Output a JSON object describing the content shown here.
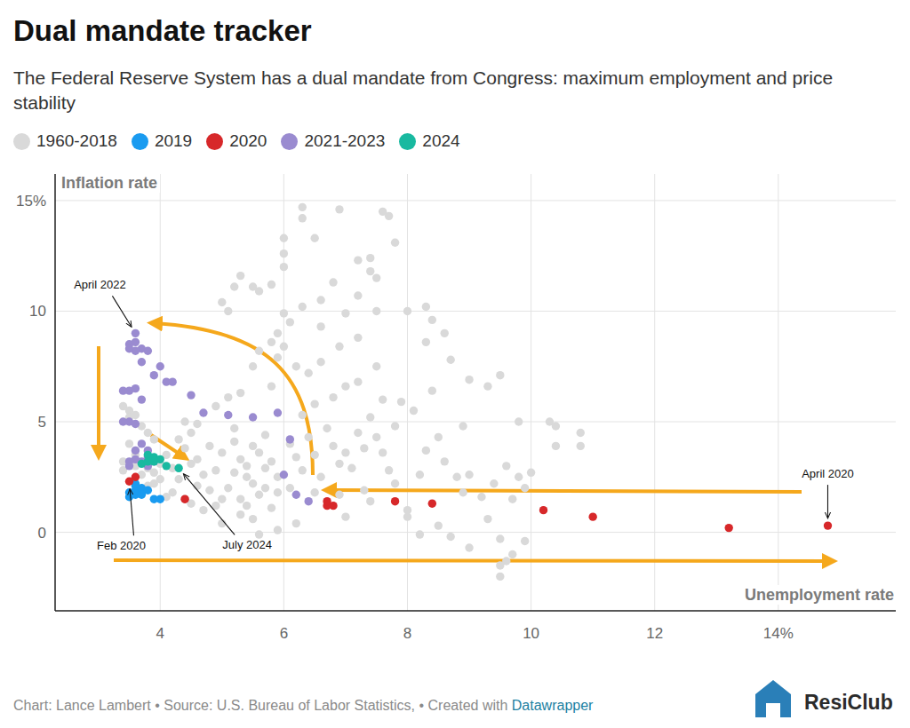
{
  "chart_data": {
    "type": "scatter",
    "title": "Dual mandate tracker",
    "subtitle": "The Federal Reserve System has a dual mandate from Congress: maximum employment and price stability",
    "x_label": "Unemployment rate",
    "y_label": "Inflation rate",
    "footer": "Chart: Lance Lambert • Source: U.S. Bureau of Labor Statistics,  • Created with",
    "footer_link": "Datawrapper",
    "logo": "ResiClub",
    "xlim": [
      2.3,
      15.9
    ],
    "ylim": [
      -3.55,
      16.2
    ],
    "xticks": [
      4,
      6,
      8,
      10,
      12,
      {
        "value": 14,
        "label": "14%"
      }
    ],
    "yticks": [
      0,
      5,
      10,
      {
        "value": 15,
        "label": "15%"
      }
    ],
    "grid": true,
    "legend": "top-left",
    "marker": "circle",
    "series": [
      {
        "name": "1960-2018",
        "color": "#d9d9d9",
        "x": [
          3.5,
          3.4,
          3.5,
          3.6,
          3.7,
          3.8,
          3.9,
          3.5,
          3.6,
          3.8,
          3.9,
          3.9,
          4.0,
          3.8,
          3.6,
          3.4,
          3.4,
          3.7,
          4.1,
          4.2,
          4.3,
          4.4,
          4.5,
          4.2,
          4.4,
          4.6,
          4.1,
          4.0,
          4.3,
          4.5,
          4.4,
          4.6,
          4.7,
          4.8,
          4.9,
          4.7,
          4.6,
          4.9,
          4.8,
          4.9,
          4.5,
          5.0,
          5.1,
          5.2,
          5.3,
          5.4,
          5.5,
          5.6,
          5.7,
          5.8,
          5.9,
          5.0,
          5.2,
          5.4,
          5.5,
          5.6,
          5.1,
          5.3,
          5.5,
          5.6,
          5.8,
          5.9,
          5.7,
          5.2,
          5.4,
          5.8,
          5.9,
          5.6,
          5.3,
          5.0,
          5.9,
          5.5,
          5.7,
          5.3,
          5.1,
          5.0,
          5.2,
          5.3,
          5.5,
          5.6,
          5.8,
          6.0,
          6.0,
          6.0,
          6.3,
          6.3,
          6.5,
          6.9,
          7.2,
          7.4,
          7.5,
          7.6,
          7.7,
          7.8,
          7.4,
          7.2,
          7.5,
          7.0,
          6.6,
          6.1,
          6.3,
          6.6,
          6.8,
          6.0,
          5.9,
          5.8,
          6.0,
          6.2,
          6.4,
          6.6,
          6.9,
          7.2,
          8.0,
          8.3,
          8.4,
          8.6,
          8.3,
          8.7,
          9.0,
          9.3,
          9.5,
          9.8,
          10.4,
          10.4,
          10.8,
          10.8,
          10.3,
          6.1,
          6.2,
          6.3,
          6.4,
          6.5,
          6.6,
          6.7,
          6.8,
          6.9,
          7.0,
          7.1,
          7.2,
          7.3,
          7.4,
          7.5,
          7.6,
          7.7,
          7.8,
          7.9,
          7.0,
          7.2,
          6.8,
          6.5,
          7.6,
          7.5,
          6.3,
          6.1,
          6.9,
          7.3,
          7.8,
          7.4,
          7.0,
          6.5,
          6.2,
          8.0,
          8.2,
          8.3,
          8.5,
          8.6,
          8.8,
          8.9,
          8.1,
          8.4,
          8.9,
          9.0,
          9.2,
          9.4,
          9.6,
          9.8,
          9.7,
          9.9,
          10.0,
          9.3,
          9.5,
          9.5,
          9.5,
          9.6,
          9.9,
          9.7,
          9.0,
          8.7,
          8.5,
          8.2,
          8.0
        ],
        "values": [
          5.5,
          5.7,
          5.2,
          5.3,
          4.8,
          4.5,
          4.2,
          4.0,
          3.5,
          2.9,
          2.7,
          2.2,
          2.4,
          2.1,
          3.0,
          3.2,
          2.8,
          2.6,
          3.5,
          2.9,
          2.4,
          3.8,
          3.1,
          1.8,
          1.5,
          2.1,
          1.6,
          3.1,
          4.2,
          4.5,
          5.0,
          3.3,
          2.6,
          1.9,
          1.2,
          1.0,
          4.9,
          5.7,
          3.9,
          2.8,
          1.3,
          1.5,
          2.0,
          2.7,
          3.3,
          3.0,
          2.2,
          1.7,
          2.9,
          3.2,
          2.5,
          3.6,
          4.1,
          1.2,
          0.6,
          3.6,
          6.1,
          6.3,
          7.5,
          8.2,
          6.6,
          7.9,
          4.4,
          4.7,
          2.5,
          1.1,
          0.1,
          -0.1,
          0.8,
          0.4,
          1.8,
          3.9,
          2.0,
          1.5,
          10.0,
          10.4,
          11.1,
          11.6,
          11.1,
          10.9,
          11.2,
          12.0,
          12.6,
          13.3,
          14.7,
          14.2,
          13.3,
          14.6,
          12.3,
          12.4,
          11.5,
          14.5,
          14.3,
          13.1,
          11.8,
          10.7,
          10.0,
          9.9,
          9.3,
          9.5,
          10.2,
          10.5,
          11.3,
          9.9,
          9.0,
          8.6,
          8.4,
          7.5,
          7.2,
          7.7,
          8.4,
          8.8,
          10.0,
          10.2,
          9.6,
          9.0,
          8.6,
          7.8,
          6.9,
          6.6,
          7.1,
          5.0,
          3.9,
          4.8,
          4.5,
          3.9,
          5.0,
          4.0,
          3.4,
          2.8,
          4.3,
          3.5,
          2.5,
          4.7,
          3.9,
          3.1,
          3.6,
          2.9,
          4.5,
          3.8,
          5.2,
          4.3,
          3.6,
          2.8,
          4.8,
          5.9,
          6.6,
          6.8,
          6.1,
          5.8,
          6.0,
          7.5,
          5.3,
          2.0,
          1.7,
          1.9,
          2.2,
          1.4,
          0.7,
          1.8,
          0.4,
          1.0,
          2.6,
          3.7,
          4.3,
          3.2,
          2.5,
          4.8,
          5.5,
          6.4,
          1.8,
          2.6,
          1.6,
          2.2,
          3.0,
          2.5,
          1.5,
          2.0,
          2.7,
          0.6,
          -0.3,
          -1.5,
          -2.0,
          -1.3,
          -0.4,
          -1.0,
          -0.7,
          -0.2,
          0.3,
          -0.1,
          0.7
        ]
      },
      {
        "name": "2019",
        "color": "#1a9bf0",
        "x": [
          3.5,
          3.6,
          3.7,
          3.6,
          3.7,
          3.8,
          3.5,
          3.6,
          3.7,
          3.9,
          4.0,
          3.6
        ],
        "values": [
          1.6,
          1.7,
          1.8,
          1.9,
          2.0,
          1.9,
          1.8,
          2.1,
          1.7,
          1.5,
          1.5,
          2.2
        ]
      },
      {
        "name": "2020",
        "color": "#d7282a",
        "x": [
          3.6,
          3.5,
          4.4,
          14.8,
          13.2,
          11.0,
          10.2,
          8.4,
          7.8,
          6.8,
          6.7,
          6.7
        ],
        "values": [
          2.5,
          2.3,
          1.5,
          0.3,
          0.2,
          0.7,
          1.0,
          1.3,
          1.4,
          1.2,
          1.2,
          1.4
        ]
      },
      {
        "name": "2021-2023",
        "color": "#9a8bd0",
        "x": [
          3.6,
          3.5,
          3.6,
          3.7,
          3.6,
          3.5,
          3.8,
          3.7,
          4.0,
          3.9,
          4.1,
          3.5,
          3.6,
          3.7,
          3.4,
          3.5,
          3.4,
          3.6,
          3.7,
          3.8,
          3.8,
          3.9,
          3.7,
          3.6,
          3.5,
          3.8,
          4.5,
          4.7,
          5.1,
          5.5,
          5.9,
          6.1,
          6.0,
          6.2,
          6.4,
          3.5,
          3.6,
          4.2
        ],
        "values": [
          9.0,
          8.5,
          8.6,
          8.3,
          8.2,
          8.3,
          8.2,
          7.7,
          7.5,
          7.1,
          6.8,
          6.4,
          6.5,
          6.0,
          6.4,
          5.0,
          5.0,
          4.9,
          4.0,
          3.7,
          3.4,
          3.2,
          3.2,
          3.3,
          3.2,
          3.0,
          6.2,
          5.4,
          5.3,
          5.2,
          5.4,
          4.2,
          2.6,
          1.7,
          1.4,
          3.0,
          3.7,
          6.8
        ]
      },
      {
        "name": "2024",
        "color": "#19b9a0",
        "x": [
          3.7,
          3.9,
          3.8,
          3.9,
          4.0,
          4.1,
          4.3,
          3.8
        ],
        "values": [
          3.1,
          3.2,
          3.5,
          3.4,
          3.3,
          3.0,
          2.9,
          3.2
        ]
      }
    ],
    "annotations": [
      {
        "text": "April 2022",
        "x": 3.6,
        "y": 9.0
      },
      {
        "text": "April 2020",
        "x": 14.8,
        "y": 0.3
      },
      {
        "text": "Feb 2020",
        "x": 3.5,
        "y": 2.3
      },
      {
        "text": "July 2024",
        "x": 4.3,
        "y": 2.9
      }
    ]
  }
}
